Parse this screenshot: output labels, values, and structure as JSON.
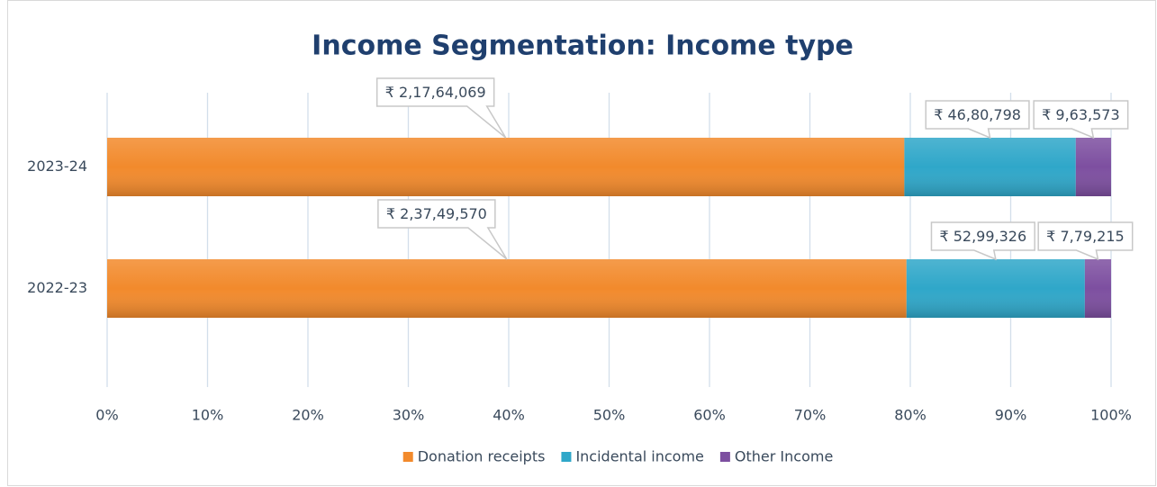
{
  "chart_data": {
    "type": "bar",
    "orientation": "horizontal",
    "stacking": "percent",
    "title": "Income Segmentation: Income type",
    "categories": [
      "2023-24",
      "2022-23"
    ],
    "series": [
      {
        "name": "Donation receipts",
        "color": "#f28a2c",
        "values": [
          21764069,
          23749570
        ],
        "value_labels": [
          "₹ 2,17,64,069",
          "₹ 2,37,49,570"
        ]
      },
      {
        "name": "Incidental income",
        "color": "#2fa7c9",
        "values": [
          4680798,
          5299326
        ],
        "value_labels": [
          "₹ 46,80,798",
          "₹ 52,99,326"
        ]
      },
      {
        "name": "Other Income",
        "color": "#7d4fa0",
        "values": [
          963573,
          779215
        ],
        "value_labels": [
          "₹ 9,63,573",
          "₹ 7,79,215"
        ]
      }
    ],
    "xlim": [
      0,
      100
    ],
    "xticks": [
      {
        "value": 0,
        "label": "0%"
      },
      {
        "value": 10,
        "label": "10%"
      },
      {
        "value": 20,
        "label": "20%"
      },
      {
        "value": 30,
        "label": "30%"
      },
      {
        "value": 40,
        "label": "40%"
      },
      {
        "value": 50,
        "label": "50%"
      },
      {
        "value": 60,
        "label": "60%"
      },
      {
        "value": 70,
        "label": "70%"
      },
      {
        "value": 80,
        "label": "80%"
      },
      {
        "value": 90,
        "label": "90%"
      },
      {
        "value": 100,
        "label": "100%"
      }
    ],
    "grid": true,
    "legend": "bottom"
  }
}
